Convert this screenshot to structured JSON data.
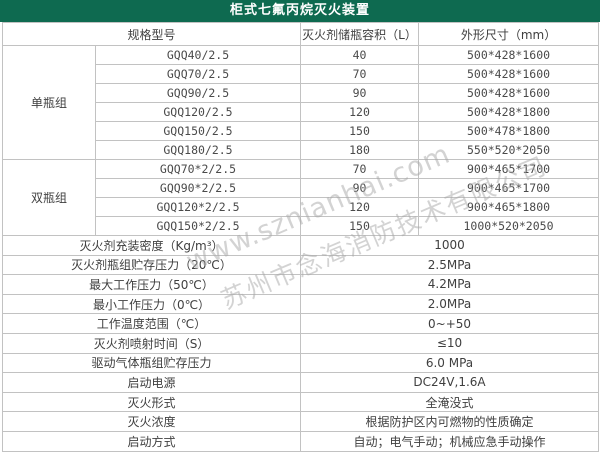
{
  "title": "柜式七氟丙烷灭火装置",
  "colors": {
    "title_bar_green": "#0e6a50",
    "border_gray": "#c2c2c2",
    "text": "#3f3f3f",
    "watermark_gray": "#a8a8a8"
  },
  "watermark": {
    "line1": "www.sznianhai.com",
    "line2": "苏州市念海消防技术有限公司"
  },
  "spec_table": {
    "columns": [
      "规格型号",
      "灭火剂储瓶容积（L）",
      "外形尺寸（mm）"
    ],
    "groups": [
      {
        "name": "单瓶组",
        "rows": [
          {
            "model": "GQQ40/2.5",
            "volume": "40",
            "size": "500*428*1600"
          },
          {
            "model": "GQQ70/2.5",
            "volume": "70",
            "size": "500*428*1600"
          },
          {
            "model": "GQQ90/2.5",
            "volume": "90",
            "size": "500*428*1600"
          },
          {
            "model": "GQQ120/2.5",
            "volume": "120",
            "size": "500*428*1800"
          },
          {
            "model": "GQQ150/2.5",
            "volume": "150",
            "size": "500*478*1800"
          },
          {
            "model": "GQQ180/2.5",
            "volume": "180",
            "size": "550*520*2050"
          }
        ]
      },
      {
        "name": "双瓶组",
        "rows": [
          {
            "model": "GQQ70*2/2.5",
            "volume": "70",
            "size": "900*465*1700"
          },
          {
            "model": "GQQ90*2/2.5",
            "volume": "90",
            "size": "900*465*1700"
          },
          {
            "model": "GQQ120*2/2.5",
            "volume": "120",
            "size": "900*465*1800"
          },
          {
            "model": "GQQ150*2/2.5",
            "volume": "150",
            "size": "1000*520*2050"
          }
        ]
      }
    ],
    "properties": [
      {
        "label": "灭火剂充装密度（Kg/m³）",
        "value": "1000"
      },
      {
        "label": "灭火剂瓶组贮存压力（20℃）",
        "value": "2.5MPa"
      },
      {
        "label": "最大工作压力（50℃）",
        "value": "4.2MPa"
      },
      {
        "label": "最小工作压力（0℃）",
        "value": "2.0MPa"
      },
      {
        "label": "工作温度范围（℃）",
        "value": "0~+50"
      },
      {
        "label": "灭火剂喷射时间（S）",
        "value": "≤10"
      },
      {
        "label": "驱动气体瓶组贮存压力",
        "value": "6.0 MPa"
      },
      {
        "label": "启动电源",
        "value": "DC24V,1.6A"
      },
      {
        "label": "灭火形式",
        "value": "全淹没式"
      },
      {
        "label": "灭火浓度",
        "value": "根据防护区内可燃物的性质确定"
      },
      {
        "label": "启动方式",
        "value": "自动；电气手动；机械应急手动操作"
      }
    ]
  }
}
